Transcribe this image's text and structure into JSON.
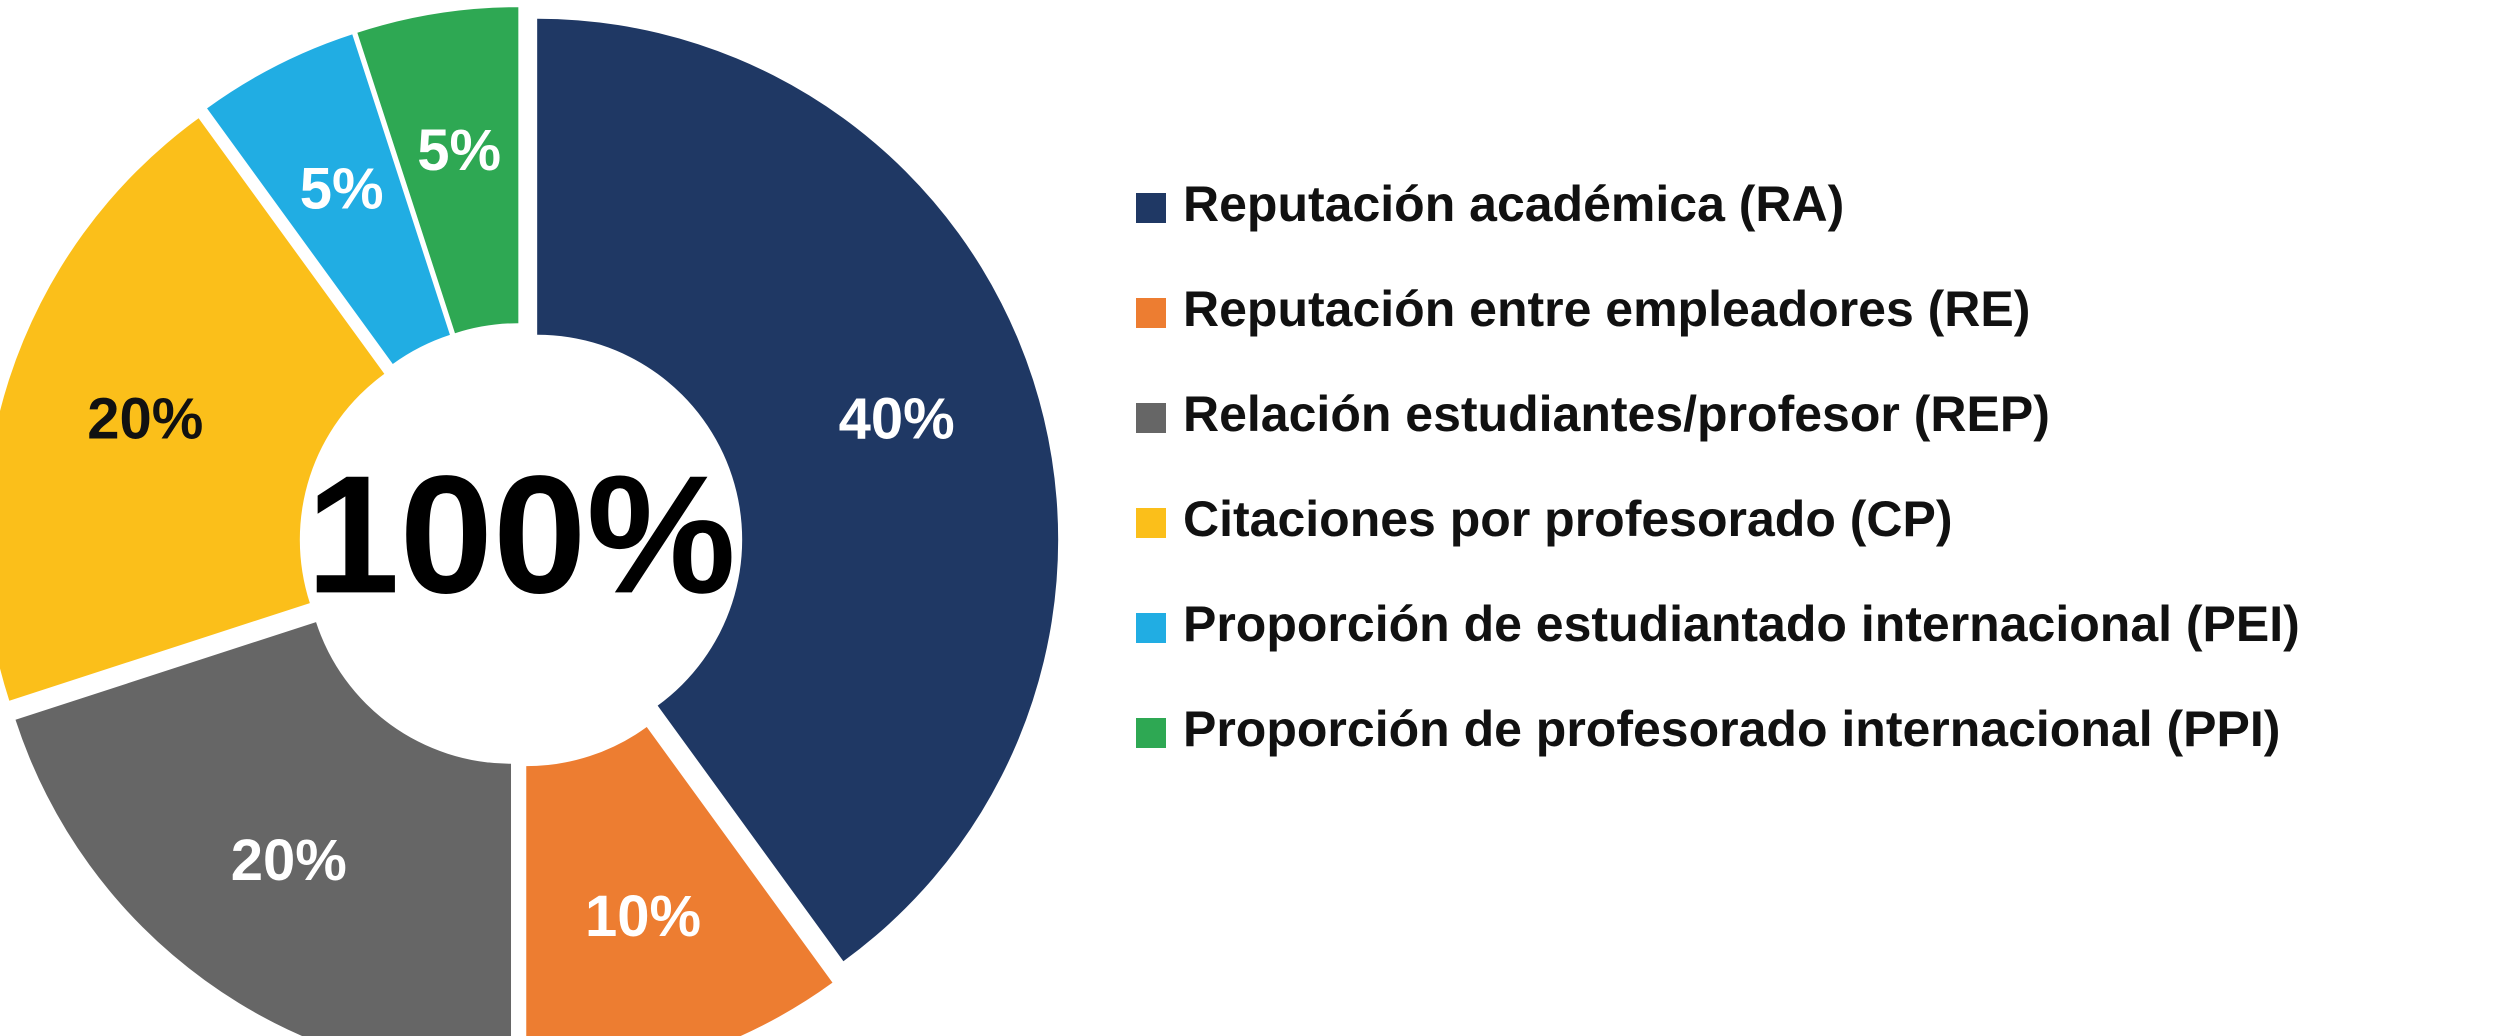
{
  "chart_data": {
    "type": "donut",
    "center_label": "100%",
    "categories": [
      "Reputación académica (RA)",
      "Reputación entre empleadores (RE)",
      "Relación estudiantes/profesor (REP)",
      "Citaciones por profesorado (CP)",
      "Proporción de estudiantado internacional (PEI)",
      "Proporción de profesorado internacional (PPI)"
    ],
    "values": [
      40,
      10,
      20,
      20,
      5,
      5
    ],
    "value_labels": [
      "40%",
      "10%",
      "20%",
      "20%",
      "5%",
      "5%"
    ],
    "colors": [
      "#1f3864",
      "#ed7d31",
      "#666666",
      "#fbbf1a",
      "#21ade3",
      "#2ea853"
    ],
    "legend": "right"
  }
}
